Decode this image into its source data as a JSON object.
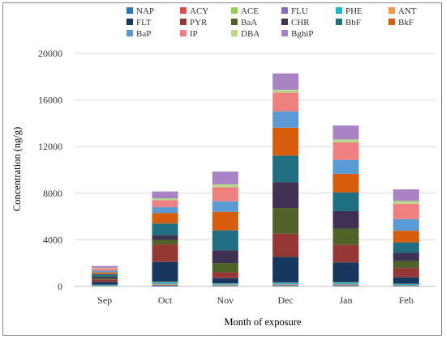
{
  "chart_data": {
    "type": "bar",
    "stacked": true,
    "xlabel": "Month of exposure",
    "ylabel": "Concentration (ng/g)",
    "ylim": [
      0,
      20000
    ],
    "yticks": [
      0,
      4000,
      8000,
      12000,
      16000,
      20000
    ],
    "grid": "horizontal",
    "legend_position": "top",
    "categories": [
      "Sep",
      "Oct",
      "Nov",
      "Dec",
      "Jan",
      "Feb"
    ],
    "series": [
      {
        "name": "NAP",
        "color": "#2e75b6",
        "values": [
          30,
          80,
          50,
          60,
          60,
          40
        ]
      },
      {
        "name": "ACY",
        "color": "#e04b4b",
        "values": [
          20,
          60,
          40,
          50,
          60,
          30
        ]
      },
      {
        "name": "ACE",
        "color": "#92d050",
        "values": [
          20,
          60,
          40,
          50,
          50,
          30
        ]
      },
      {
        "name": "FLU",
        "color": "#8e6bb7",
        "values": [
          20,
          50,
          30,
          40,
          40,
          30
        ]
      },
      {
        "name": "PHE",
        "color": "#1fb5cc",
        "values": [
          50,
          120,
          80,
          100,
          120,
          80
        ]
      },
      {
        "name": "ANT",
        "color": "#f79646",
        "values": [
          10,
          30,
          20,
          30,
          30,
          20
        ]
      },
      {
        "name": "FLT",
        "color": "#17375e",
        "values": [
          250,
          1700,
          450,
          2200,
          1700,
          550
        ]
      },
      {
        "name": "PYR",
        "color": "#953735",
        "values": [
          200,
          1500,
          500,
          2000,
          1500,
          800
        ]
      },
      {
        "name": "BaA",
        "color": "#4f6228",
        "values": [
          100,
          400,
          800,
          2200,
          1400,
          600
        ]
      },
      {
        "name": "CHR",
        "color": "#3f3151",
        "values": [
          150,
          400,
          1100,
          2200,
          1500,
          700
        ]
      },
      {
        "name": "BbF",
        "color": "#1f6e82",
        "values": [
          200,
          1000,
          1700,
          2300,
          1600,
          900
        ]
      },
      {
        "name": "BkF",
        "color": "#d55d0b",
        "values": [
          150,
          900,
          1600,
          2400,
          1600,
          1000
        ]
      },
      {
        "name": "BaP",
        "color": "#5b9bd5",
        "values": [
          150,
          500,
          900,
          1400,
          1200,
          1000
        ]
      },
      {
        "name": "IP",
        "color": "#f08080",
        "values": [
          200,
          600,
          1200,
          1600,
          1500,
          1300
        ]
      },
      {
        "name": "DBA",
        "color": "#b9d98a",
        "values": [
          50,
          150,
          250,
          250,
          250,
          250
        ]
      },
      {
        "name": "BghiP",
        "color": "#a884c5",
        "values": [
          150,
          600,
          1100,
          1400,
          1200,
          1000
        ]
      }
    ]
  }
}
